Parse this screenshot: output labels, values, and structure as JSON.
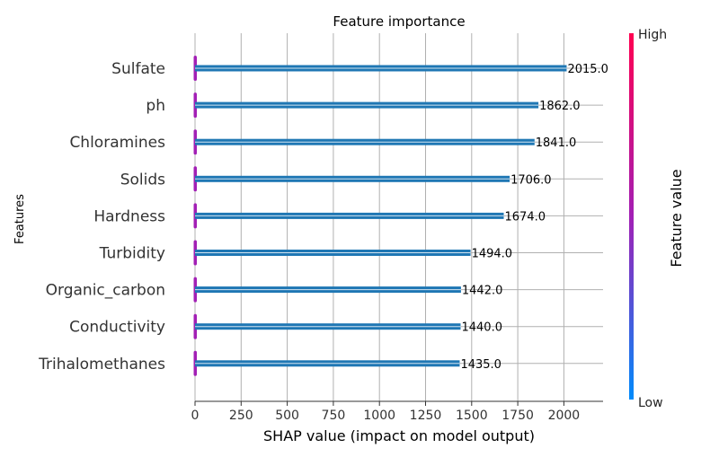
{
  "chart_data": {
    "type": "bar",
    "orientation": "horizontal",
    "title": "Feature importance",
    "xlabel": "SHAP value (impact on model output)",
    "ylabel": "Features",
    "xlim": [
      0,
      2200
    ],
    "xticks": [
      0,
      250,
      500,
      750,
      1000,
      1250,
      1500,
      1750,
      2000
    ],
    "grid": true,
    "categories": [
      "Sulfate",
      "ph",
      "Chloramines",
      "Solids",
      "Hardness",
      "Turbidity",
      "Organic_carbon",
      "Conductivity",
      "Trihalomethanes"
    ],
    "values": [
      2015.0,
      1862.0,
      1841.0,
      1706.0,
      1674.0,
      1494.0,
      1442.0,
      1440.0,
      1435.0
    ],
    "value_labels": [
      "2015.0",
      "1862.0",
      "1841.0",
      "1706.0",
      "1674.0",
      "1494.0",
      "1442.0",
      "1440.0",
      "1435.0"
    ],
    "bar_color": "#1f77b4",
    "colorbar": {
      "label": "Feature value",
      "high_label": "High",
      "low_label": "Low",
      "high_color": "#ff0051",
      "mid_color": "#a21fb5",
      "low_color": "#008bfb"
    }
  }
}
